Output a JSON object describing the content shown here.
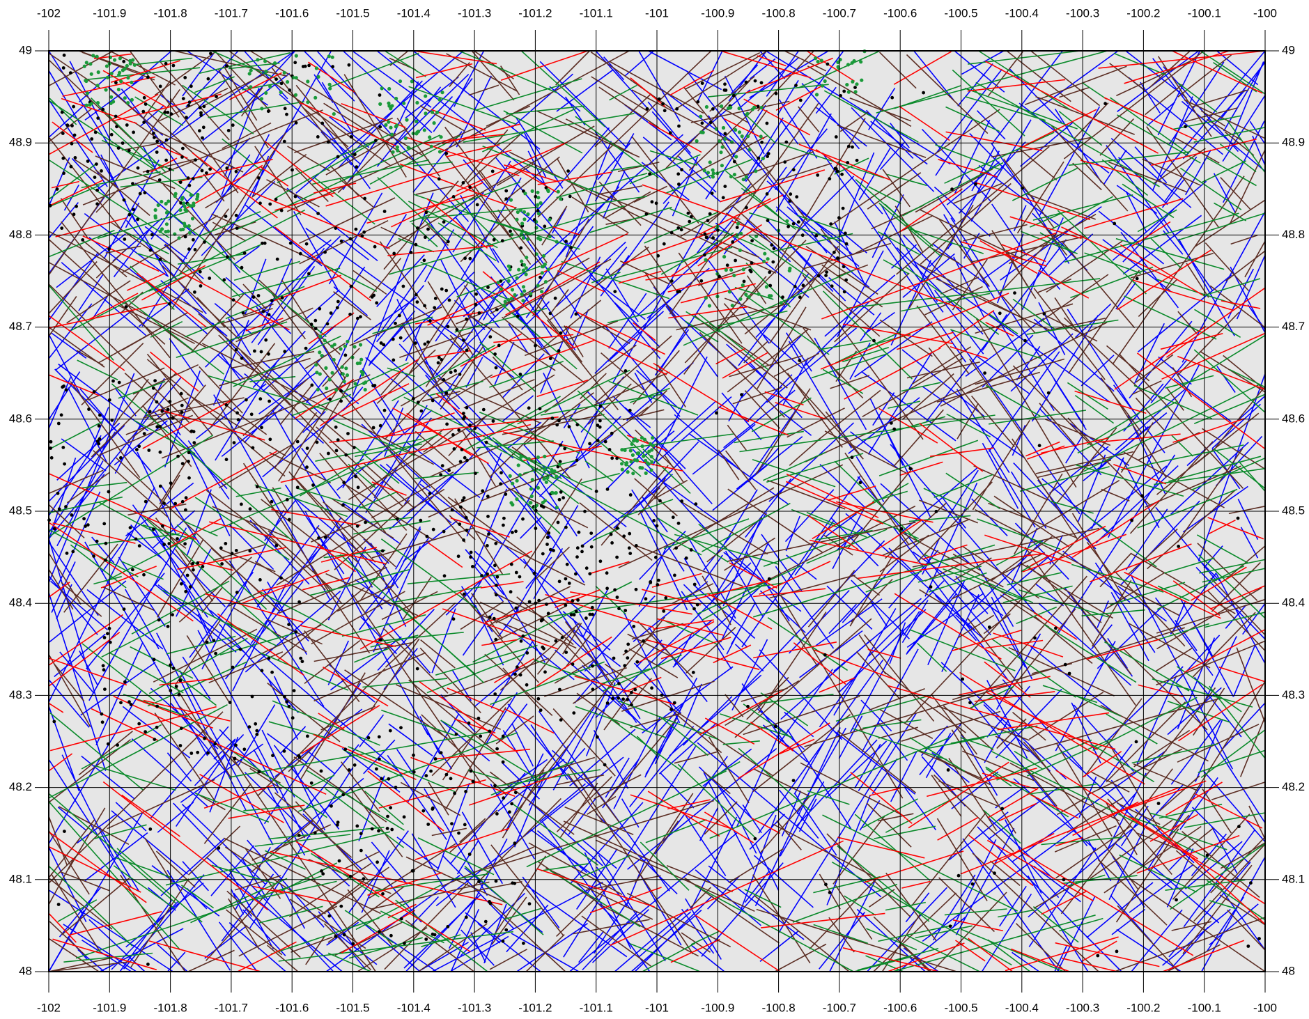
{
  "map": {
    "bounds": {
      "lon_min": -102,
      "lon_max": -100,
      "lat_min": 48,
      "lat_max": 49
    },
    "background_color": "#e6e6e6",
    "grid_color": "#000000",
    "lon_ticks": [
      "-102",
      "-101.9",
      "-101.8",
      "-101.7",
      "-101.6",
      "-101.5",
      "-101.4",
      "-101.3",
      "-101.2",
      "-101.1",
      "-101",
      "-100.9",
      "-100.8",
      "-100.7",
      "-100.6",
      "-100.5",
      "-100.4",
      "-100.3",
      "-100.2",
      "-100.1",
      "-100"
    ],
    "lat_ticks": [
      "49",
      "48.9",
      "48.8",
      "48.7",
      "48.6",
      "48.5",
      "48.4",
      "48.3",
      "48.2",
      "48.1",
      "48"
    ],
    "line_layers": [
      {
        "color_name": "blue",
        "color": "#0000ff",
        "count": 1150,
        "orientation": "mostly NE-SW / NW-SE diagonals"
      },
      {
        "color_name": "brown",
        "color": "#5c2e24",
        "count": 900,
        "orientation": "mixed, mostly NW-SE"
      },
      {
        "color_name": "green",
        "color": "#0a8a2a",
        "count": 520,
        "orientation": "mostly WNW-ESE"
      },
      {
        "color_name": "red",
        "color": "#ff0000",
        "count": 360,
        "orientation": "mostly WNW-ESE"
      }
    ],
    "point_layers": [
      {
        "color_name": "black",
        "color": "#000000",
        "count": 1100,
        "distribution": "concentrated in western half and north-central"
      },
      {
        "color_name": "green",
        "color": "#1a9a3a",
        "count": 450,
        "distribution": "clustered along northern edge and around -101.2,48.55 and -101.25,48.75"
      }
    ]
  }
}
